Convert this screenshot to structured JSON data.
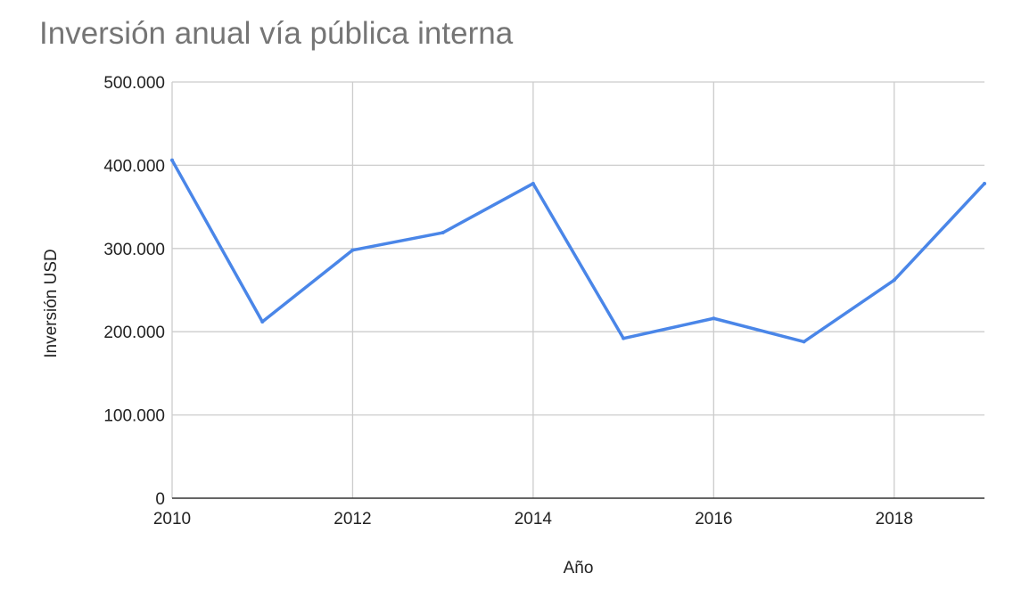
{
  "colors": {
    "series": "#4a86e8",
    "title": "#757575",
    "grid": "#cccccc",
    "text": "#222222"
  },
  "chart_data": {
    "type": "line",
    "title": "Inversión anual vía pública interna",
    "xlabel": "Año",
    "ylabel": "Inversión USD",
    "x": [
      2010,
      2011,
      2012,
      2013,
      2014,
      2015,
      2016,
      2017,
      2018,
      2019
    ],
    "series": [
      {
        "values": [
          406000,
          212000,
          298000,
          319000,
          378000,
          192000,
          216000,
          188000,
          262000,
          378000
        ]
      }
    ],
    "xlim": [
      2010,
      2019
    ],
    "ylim": [
      0,
      500000
    ],
    "x_ticks": [
      2010,
      2012,
      2014,
      2016,
      2018
    ],
    "x_tick_labels": [
      "2010",
      "2012",
      "2014",
      "2016",
      "2018"
    ],
    "y_ticks": [
      0,
      100000,
      200000,
      300000,
      400000,
      500000
    ],
    "y_tick_labels": [
      "0",
      "100.000",
      "200.000",
      "300.000",
      "400.000",
      "500.000"
    ],
    "grid": true,
    "legend": "none"
  }
}
